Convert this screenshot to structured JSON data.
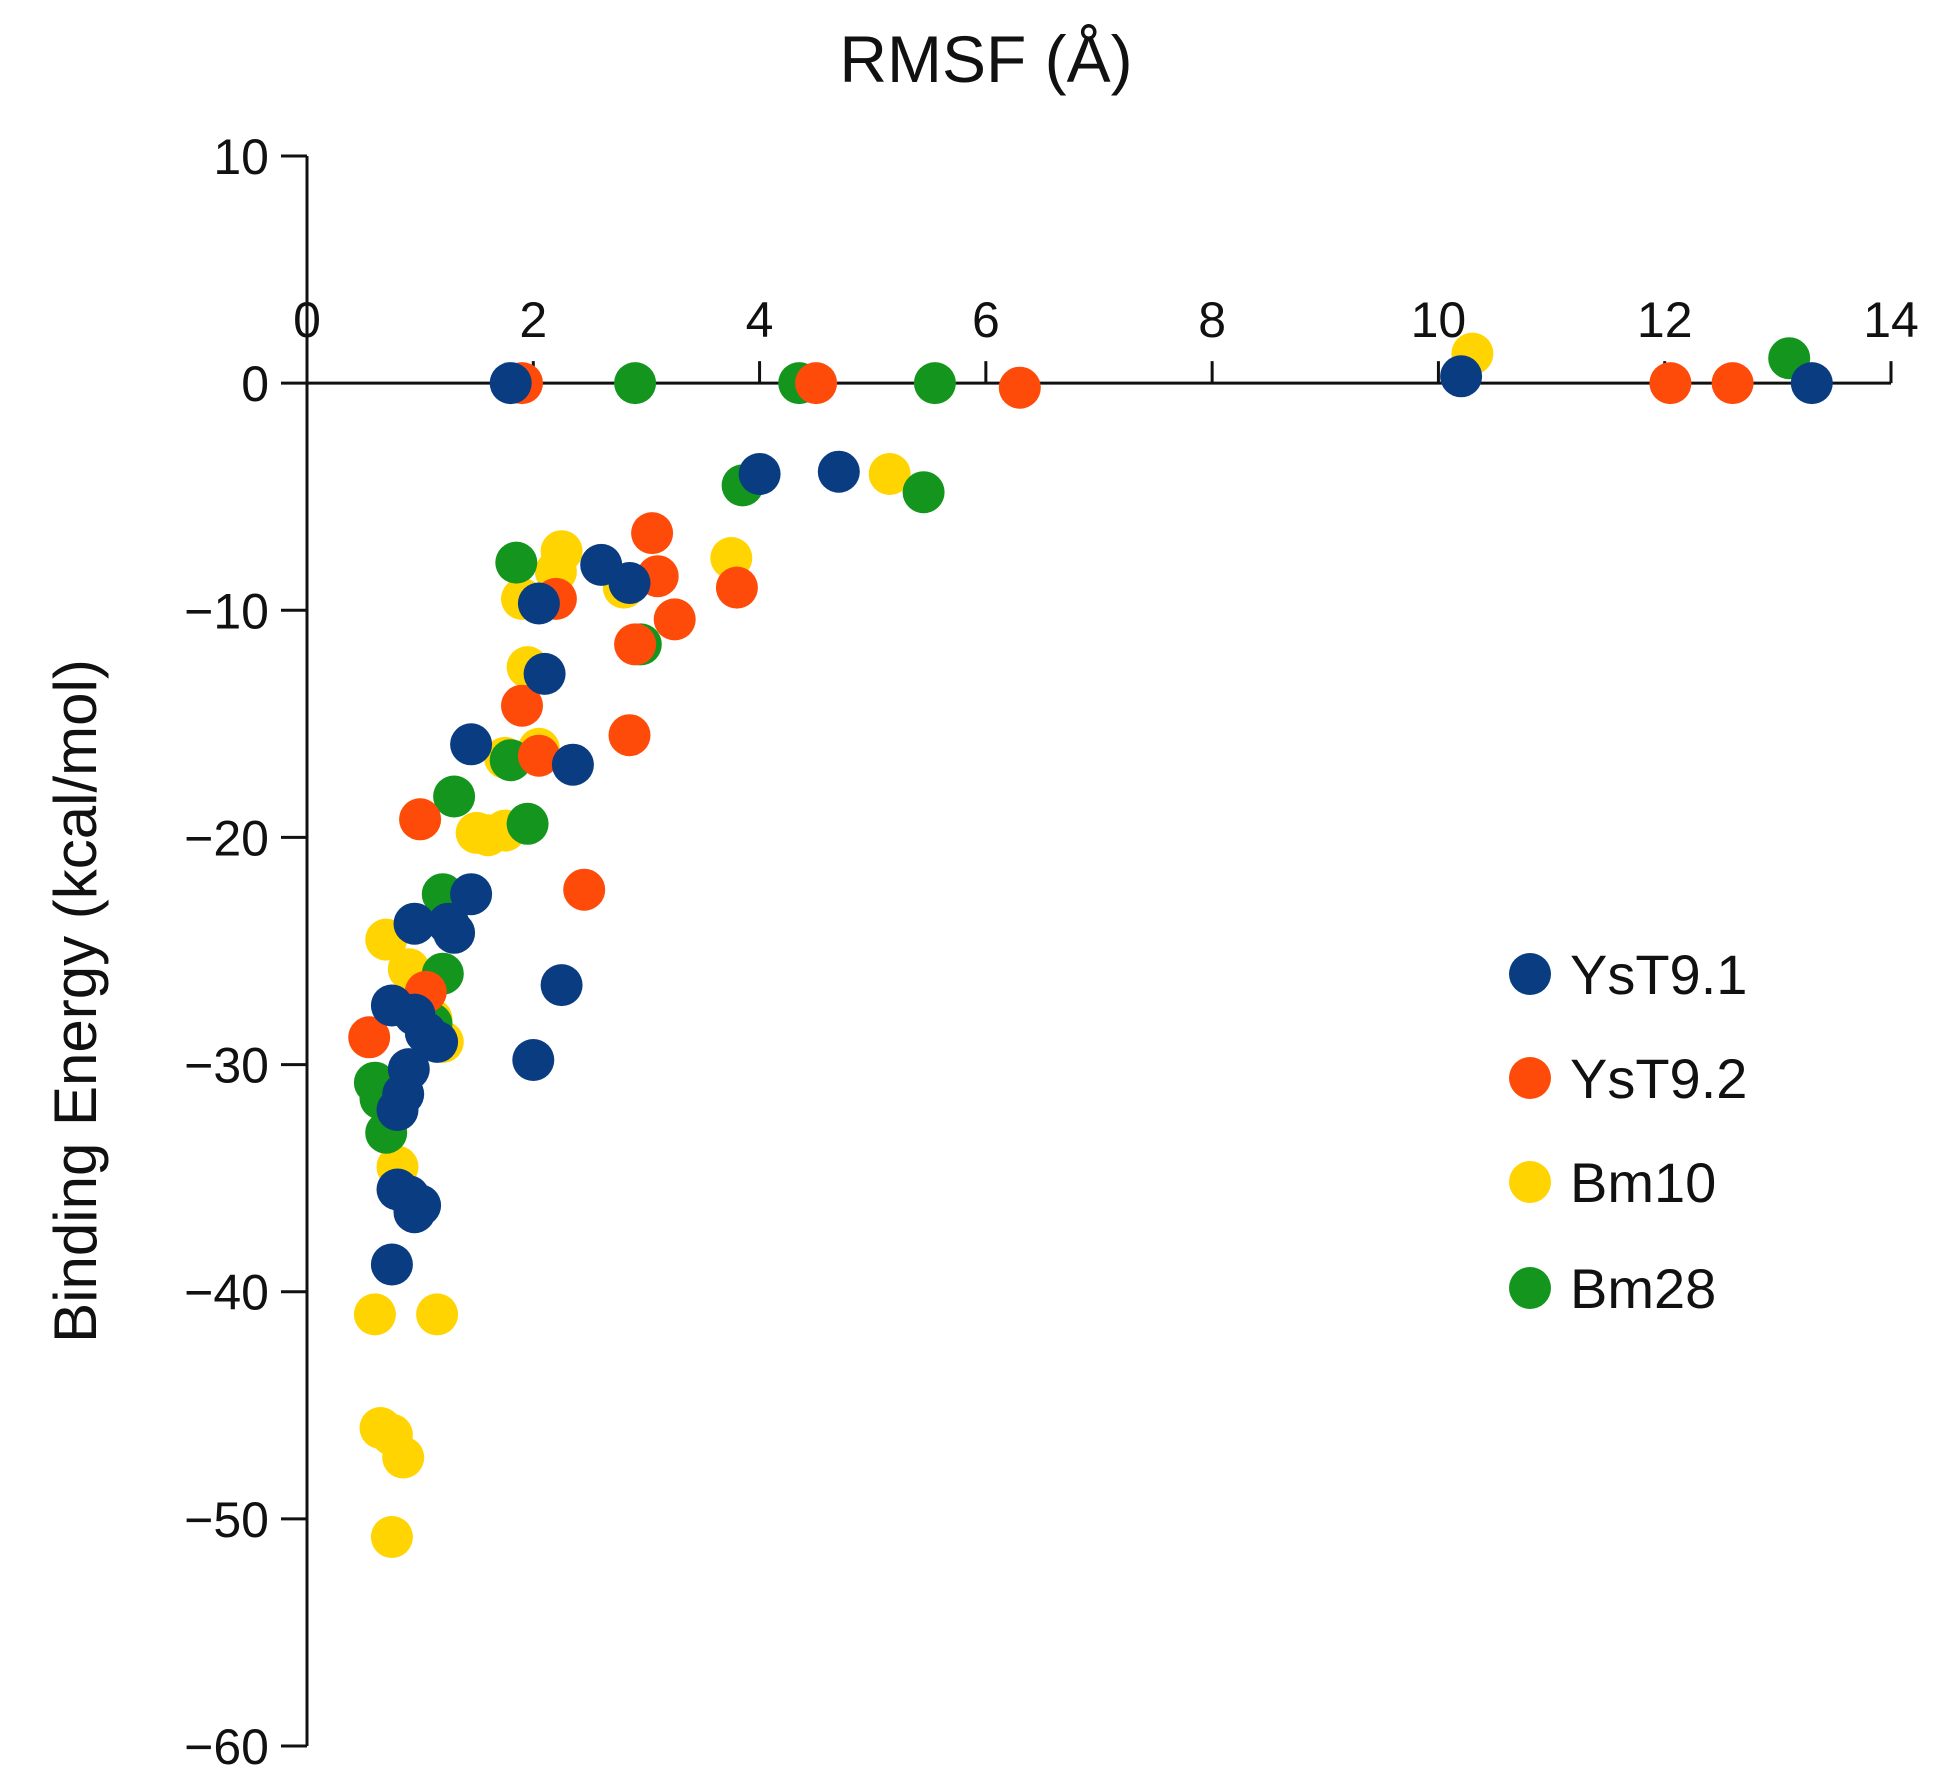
{
  "chart_data": {
    "type": "scatter",
    "title": "RMSF (Å)",
    "xlabel": "RMSF (Å)",
    "ylabel": "Binding Energy (kcal/mol)",
    "xlim": [
      0,
      14
    ],
    "ylim": [
      -60,
      10
    ],
    "x_ticks": [
      0,
      2,
      4,
      6,
      8,
      10,
      12,
      14
    ],
    "y_ticks": [
      10,
      0,
      -10,
      -20,
      -30,
      -40,
      -50,
      -60
    ],
    "x_tick_labels": [
      "0",
      "2",
      "4",
      "6",
      "8",
      "10",
      "12",
      "14"
    ],
    "y_tick_labels": [
      "10",
      "0",
      "−10",
      "−20",
      "−30",
      "−40",
      "−50",
      "−60"
    ],
    "x_axis_position": "crosses at y = 0 (labels above)",
    "legend_position": "right",
    "grid": false,
    "series": [
      {
        "name": "Bm10",
        "color": "#FFD400",
        "points": [
          [
            0.6,
            -41.0
          ],
          [
            0.65,
            -46.0
          ],
          [
            0.75,
            -46.3
          ],
          [
            0.85,
            -47.3
          ],
          [
            0.75,
            -50.8
          ],
          [
            1.15,
            -41.0
          ],
          [
            0.8,
            -34.5
          ],
          [
            0.7,
            -24.5
          ],
          [
            0.9,
            -25.8
          ],
          [
            1.2,
            -29.0
          ],
          [
            1.0,
            -19.2
          ],
          [
            1.5,
            -19.8
          ],
          [
            1.6,
            -19.9
          ],
          [
            1.75,
            -16.5
          ],
          [
            1.75,
            -19.7
          ],
          [
            2.05,
            -16.1
          ],
          [
            1.95,
            -12.5
          ],
          [
            1.9,
            -9.5
          ],
          [
            2.25,
            -7.4
          ],
          [
            2.2,
            -8.3
          ],
          [
            3.75,
            -7.7
          ],
          [
            5.15,
            -4.0
          ],
          [
            10.3,
            1.3
          ],
          [
            2.8,
            -9.0
          ],
          [
            1.1,
            -28.0
          ]
        ]
      },
      {
        "name": "Bm28",
        "color": "#14961E",
        "points": [
          [
            0.6,
            -30.8
          ],
          [
            0.65,
            -31.5
          ],
          [
            0.7,
            -33.0
          ],
          [
            1.2,
            -22.5
          ],
          [
            1.3,
            -18.2
          ],
          [
            1.2,
            -26.0
          ],
          [
            1.95,
            -19.4
          ],
          [
            1.85,
            -7.9
          ],
          [
            3.85,
            -4.5
          ],
          [
            4.35,
            0.0
          ],
          [
            2.9,
            0.0
          ],
          [
            5.55,
            0.0
          ],
          [
            5.45,
            -4.8
          ],
          [
            2.95,
            -11.5
          ],
          [
            13.1,
            1.1
          ],
          [
            1.8,
            -16.6
          ],
          [
            1.1,
            -28.2
          ]
        ]
      },
      {
        "name": "YsT9.2",
        "color": "#FF4B0A",
        "points": [
          [
            0.55,
            -28.8
          ],
          [
            1.0,
            -19.2
          ],
          [
            1.05,
            -26.8
          ],
          [
            1.9,
            -14.2
          ],
          [
            2.05,
            -16.4
          ],
          [
            2.2,
            -9.5
          ],
          [
            2.45,
            -22.3
          ],
          [
            2.85,
            -15.5
          ],
          [
            2.9,
            -11.5
          ],
          [
            3.05,
            -6.6
          ],
          [
            3.1,
            -8.5
          ],
          [
            3.25,
            -10.4
          ],
          [
            3.8,
            -9.0
          ],
          [
            4.5,
            0.0
          ],
          [
            6.3,
            -0.2
          ],
          [
            12.05,
            0.0
          ],
          [
            12.6,
            0.0
          ],
          [
            1.9,
            0.0
          ]
        ]
      },
      {
        "name": "YsT9.1",
        "color": "#0A3C82",
        "points": [
          [
            0.75,
            -38.8
          ],
          [
            0.8,
            -35.5
          ],
          [
            0.9,
            -35.8
          ],
          [
            0.95,
            -36.5
          ],
          [
            1.0,
            -36.2
          ],
          [
            0.8,
            -32.0
          ],
          [
            0.85,
            -31.3
          ],
          [
            0.9,
            -30.2
          ],
          [
            0.75,
            -27.4
          ],
          [
            0.95,
            -27.8
          ],
          [
            1.05,
            -28.6
          ],
          [
            1.15,
            -29.0
          ],
          [
            0.95,
            -23.8
          ],
          [
            1.25,
            -23.8
          ],
          [
            1.3,
            -24.2
          ],
          [
            1.45,
            -22.5
          ],
          [
            1.45,
            -15.9
          ],
          [
            2.0,
            -29.8
          ],
          [
            2.25,
            -26.5
          ],
          [
            2.35,
            -16.8
          ],
          [
            2.1,
            -12.8
          ],
          [
            2.05,
            -9.7
          ],
          [
            2.6,
            -8.0
          ],
          [
            2.85,
            -8.8
          ],
          [
            4.0,
            -4.0
          ],
          [
            4.7,
            -3.9
          ],
          [
            1.8,
            0.0
          ],
          [
            10.2,
            0.3
          ],
          [
            13.3,
            0.0
          ]
        ]
      }
    ],
    "legend": [
      "YsT9.1",
      "YsT9.2",
      "Bm10",
      "Bm28"
    ]
  },
  "legend_colors": {
    "YsT9.1": "#0A3C82",
    "YsT9.2": "#FF4B0A",
    "Bm10": "#FFD400",
    "Bm28": "#14961E"
  }
}
